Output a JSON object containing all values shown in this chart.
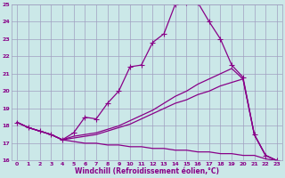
{
  "xlabel": "Windchill (Refroidissement éolien,°C)",
  "xlim": [
    -0.5,
    23.5
  ],
  "ylim": [
    16,
    25
  ],
  "xticks": [
    0,
    1,
    2,
    3,
    4,
    5,
    6,
    7,
    8,
    9,
    10,
    11,
    12,
    13,
    14,
    15,
    16,
    17,
    18,
    19,
    20,
    21,
    22,
    23
  ],
  "yticks": [
    16,
    17,
    18,
    19,
    20,
    21,
    22,
    23,
    24,
    25
  ],
  "bg_color": "#cbe8e8",
  "grid_color": "#a0a0c0",
  "line_color": "#880088",
  "series": [
    {
      "x": [
        0,
        1,
        2,
        3,
        4,
        5,
        6,
        7,
        8,
        9,
        10,
        11,
        12,
        13,
        14,
        15,
        16,
        17,
        18,
        19,
        20,
        21,
        22,
        23
      ],
      "y": [
        18.2,
        17.9,
        17.7,
        17.5,
        17.2,
        17.6,
        18.5,
        18.4,
        19.3,
        20.0,
        21.4,
        21.5,
        22.8,
        23.3,
        25.0,
        25.1,
        25.1,
        24.0,
        23.0,
        21.5,
        20.8,
        17.5,
        16.3,
        16.0
      ],
      "marker": true
    },
    {
      "x": [
        0,
        1,
        2,
        3,
        4,
        5,
        6,
        7,
        8,
        9,
        10,
        11,
        12,
        13,
        14,
        15,
        16,
        17,
        18,
        19,
        20,
        21,
        22,
        23
      ],
      "y": [
        18.2,
        17.9,
        17.7,
        17.5,
        17.2,
        17.4,
        17.5,
        17.6,
        17.8,
        18.0,
        18.3,
        18.6,
        18.9,
        19.3,
        19.7,
        20.0,
        20.4,
        20.7,
        21.0,
        21.3,
        20.7,
        17.5,
        16.3,
        16.0
      ],
      "marker": false
    },
    {
      "x": [
        0,
        1,
        2,
        3,
        4,
        5,
        6,
        7,
        8,
        9,
        10,
        11,
        12,
        13,
        14,
        15,
        16,
        17,
        18,
        19,
        20,
        21,
        22,
        23
      ],
      "y": [
        18.2,
        17.9,
        17.7,
        17.5,
        17.2,
        17.3,
        17.4,
        17.5,
        17.7,
        17.9,
        18.1,
        18.4,
        18.7,
        19.0,
        19.3,
        19.5,
        19.8,
        20.0,
        20.3,
        20.5,
        20.7,
        17.5,
        16.3,
        16.0
      ],
      "marker": false
    },
    {
      "x": [
        0,
        1,
        2,
        3,
        4,
        5,
        6,
        7,
        8,
        9,
        10,
        11,
        12,
        13,
        14,
        15,
        16,
        17,
        18,
        19,
        20,
        21,
        22,
        23
      ],
      "y": [
        18.2,
        17.9,
        17.7,
        17.5,
        17.2,
        17.1,
        17.0,
        17.0,
        16.9,
        16.9,
        16.8,
        16.8,
        16.7,
        16.7,
        16.6,
        16.6,
        16.5,
        16.5,
        16.4,
        16.4,
        16.3,
        16.3,
        16.1,
        16.0
      ],
      "marker": false
    }
  ],
  "marker_style": "+",
  "markersize": 4,
  "linewidth": 0.9
}
